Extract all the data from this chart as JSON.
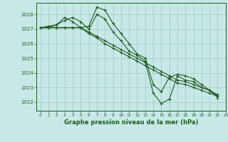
{
  "title": "Graphe pression niveau de la mer (hPa)",
  "bg_color": "#c8e8e8",
  "grid_color": "#aad0d0",
  "line_color": "#1e5c1e",
  "marker_color": "#1e5c1e",
  "xlim": [
    -0.5,
    23
  ],
  "ylim": [
    1021.4,
    1028.8
  ],
  "yticks": [
    1022,
    1023,
    1024,
    1025,
    1026,
    1027,
    1028
  ],
  "xticks": [
    0,
    1,
    2,
    3,
    4,
    5,
    6,
    7,
    8,
    9,
    10,
    11,
    12,
    13,
    14,
    15,
    16,
    17,
    18,
    19,
    20,
    21,
    22,
    23
  ],
  "series": [
    [
      1027.1,
      1027.1,
      1027.3,
      1027.8,
      1027.5,
      1027.1,
      1027.2,
      1028.5,
      1028.3,
      1027.4,
      1026.7,
      1026.0,
      1025.3,
      1025.0,
      1023.2,
      1022.7,
      1023.7,
      1023.9,
      1023.8,
      1023.6,
      1023.2,
      1022.8,
      1022.4
    ],
    [
      1027.1,
      1027.1,
      1027.1,
      1027.1,
      1027.1,
      1027.1,
      1026.7,
      1026.4,
      1026.0,
      1025.7,
      1025.4,
      1025.1,
      1024.8,
      1024.5,
      1024.2,
      1023.9,
      1023.6,
      1023.3,
      1023.2,
      1023.0,
      1022.8,
      1022.6,
      1022.4
    ],
    [
      1027.1,
      1027.1,
      1027.1,
      1027.1,
      1027.1,
      1027.1,
      1026.8,
      1026.5,
      1026.2,
      1025.9,
      1025.6,
      1025.3,
      1025.0,
      1024.7,
      1024.4,
      1024.1,
      1023.8,
      1023.5,
      1023.4,
      1023.2,
      1023.0,
      1022.8,
      1022.5
    ],
    [
      1027.1,
      1027.2,
      1027.3,
      1027.6,
      1027.8,
      1027.5,
      1027.0,
      1028.0,
      1027.7,
      1026.8,
      1026.2,
      1025.5,
      1025.2,
      1024.8,
      1022.6,
      1021.9,
      1022.2,
      1023.8,
      1023.5,
      1023.4,
      1023.0,
      1022.8,
      1022.3
    ]
  ]
}
